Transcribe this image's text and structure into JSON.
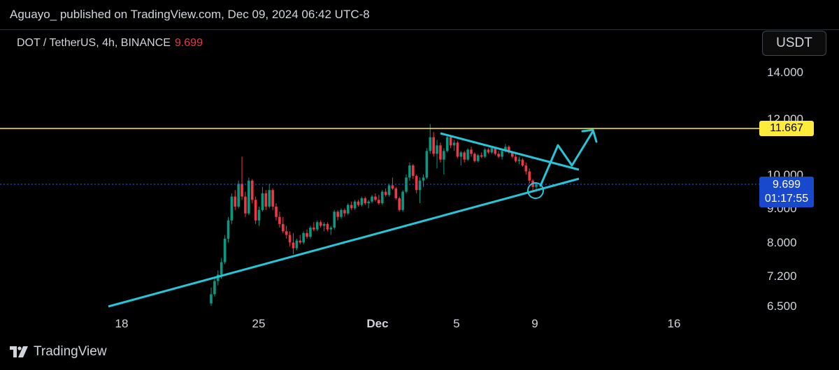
{
  "header": {
    "publish_line": "Aguayo_ published on TradingView.com, Dec 09, 2024 06:42 UTC-8"
  },
  "symbol": {
    "pair": "DOT / TetherUS, 4h, BINANCE",
    "last_price": "9.699"
  },
  "currency_button": {
    "label": "USDT"
  },
  "footer": {
    "brand": "TradingView"
  },
  "colors": {
    "up": "#089981",
    "down": "#f23645",
    "trendline": "#26c6da",
    "level": "#ffeb3b",
    "last_price_tag": "#1848cc",
    "background": "#000000"
  },
  "chart_data": {
    "type": "candlestick",
    "interval": "4h",
    "y_scale": "log",
    "ylim": [
      6.5,
      14.0
    ],
    "y_ticks": [
      "14.000",
      "12.000",
      "10.000",
      "9.000",
      "8.000",
      "7.200",
      "6.500"
    ],
    "x_ticks": [
      "18",
      "25",
      "Dec",
      "5",
      "9",
      "16"
    ],
    "price_labels": {
      "level": "11.667",
      "last": "9.699",
      "countdown": "01:17:55"
    },
    "horizontal_level": 11.667,
    "last_price": 9.699,
    "ohlc_4h": [
      [
        6.55,
        6.9,
        6.5,
        6.75
      ],
      [
        6.75,
        7.1,
        6.7,
        7.05
      ],
      [
        7.05,
        7.3,
        6.95,
        7.2
      ],
      [
        7.2,
        7.6,
        7.1,
        7.5
      ],
      [
        7.5,
        8.2,
        7.45,
        8.1
      ],
      [
        8.1,
        8.7,
        8.0,
        8.6
      ],
      [
        8.6,
        9.4,
        8.5,
        9.3
      ],
      [
        9.3,
        9.5,
        8.9,
        9.0
      ],
      [
        9.0,
        9.8,
        8.95,
        9.7
      ],
      [
        9.7,
        10.6,
        9.2,
        9.3
      ],
      [
        9.3,
        9.45,
        8.7,
        8.8
      ],
      [
        8.8,
        9.9,
        8.75,
        9.8
      ],
      [
        9.8,
        9.85,
        9.1,
        9.2
      ],
      [
        9.2,
        9.3,
        8.5,
        8.6
      ],
      [
        8.6,
        9.0,
        8.45,
        8.9
      ],
      [
        8.9,
        9.6,
        8.85,
        9.4
      ],
      [
        9.4,
        9.5,
        8.9,
        9.0
      ],
      [
        9.0,
        9.7,
        8.95,
        9.5
      ],
      [
        9.5,
        9.55,
        8.9,
        9.0
      ],
      [
        9.0,
        9.1,
        8.6,
        8.7
      ],
      [
        8.7,
        8.85,
        8.4,
        8.5
      ],
      [
        8.5,
        8.7,
        8.25,
        8.3
      ],
      [
        8.3,
        8.45,
        8.1,
        8.2
      ],
      [
        8.2,
        8.3,
        7.9,
        8.0
      ],
      [
        8.0,
        8.25,
        7.7,
        7.85
      ],
      [
        7.85,
        8.1,
        7.8,
        8.05
      ],
      [
        8.05,
        8.2,
        7.95,
        8.0
      ],
      [
        8.0,
        8.3,
        7.95,
        8.25
      ],
      [
        8.25,
        8.35,
        8.1,
        8.15
      ],
      [
        8.15,
        8.45,
        8.1,
        8.4
      ],
      [
        8.4,
        8.55,
        8.3,
        8.35
      ],
      [
        8.35,
        8.6,
        8.3,
        8.55
      ],
      [
        8.55,
        8.6,
        8.4,
        8.45
      ],
      [
        8.45,
        8.55,
        8.3,
        8.5
      ],
      [
        8.5,
        8.55,
        8.3,
        8.35
      ],
      [
        8.35,
        8.45,
        8.2,
        8.4
      ],
      [
        8.4,
        8.9,
        8.35,
        8.85
      ],
      [
        8.85,
        8.9,
        8.6,
        8.7
      ],
      [
        8.7,
        8.95,
        8.65,
        8.9
      ],
      [
        8.9,
        8.95,
        8.7,
        8.8
      ],
      [
        8.8,
        9.1,
        8.75,
        9.05
      ],
      [
        9.05,
        9.15,
        8.9,
        8.95
      ],
      [
        8.95,
        9.2,
        8.9,
        9.15
      ],
      [
        9.15,
        9.2,
        9.0,
        9.05
      ],
      [
        9.05,
        9.3,
        9.0,
        9.25
      ],
      [
        9.25,
        9.3,
        9.05,
        9.1
      ],
      [
        9.1,
        9.2,
        8.95,
        9.15
      ],
      [
        9.15,
        9.35,
        9.1,
        9.3
      ],
      [
        9.3,
        9.4,
        9.15,
        9.2
      ],
      [
        9.2,
        9.35,
        9.05,
        9.1
      ],
      [
        9.1,
        9.5,
        9.05,
        9.45
      ],
      [
        9.45,
        9.55,
        9.3,
        9.35
      ],
      [
        9.35,
        9.7,
        9.3,
        9.65
      ],
      [
        9.65,
        9.9,
        9.5,
        9.55
      ],
      [
        9.55,
        9.6,
        9.2,
        9.25
      ],
      [
        9.25,
        9.3,
        8.85,
        8.9
      ],
      [
        8.9,
        9.5,
        8.85,
        9.45
      ],
      [
        9.45,
        10.0,
        9.4,
        9.9
      ],
      [
        9.9,
        10.4,
        9.8,
        10.3
      ],
      [
        10.3,
        10.35,
        9.85,
        9.95
      ],
      [
        9.95,
        10.0,
        9.4,
        9.5
      ],
      [
        9.5,
        9.9,
        9.1,
        9.8
      ],
      [
        9.8,
        10.0,
        9.6,
        9.9
      ],
      [
        9.9,
        10.9,
        9.85,
        10.8
      ],
      [
        10.8,
        11.8,
        10.7,
        11.3
      ],
      [
        11.3,
        11.5,
        10.6,
        10.7
      ],
      [
        10.7,
        11.2,
        10.2,
        11.0
      ],
      [
        11.0,
        11.1,
        10.4,
        10.5
      ],
      [
        10.5,
        10.9,
        10.0,
        10.8
      ],
      [
        10.8,
        11.4,
        10.75,
        11.3
      ],
      [
        11.3,
        11.35,
        10.9,
        11.0
      ],
      [
        11.0,
        11.2,
        10.8,
        11.1
      ],
      [
        11.1,
        11.15,
        10.55,
        10.6
      ],
      [
        10.6,
        10.8,
        10.3,
        10.75
      ],
      [
        10.75,
        10.8,
        10.4,
        10.5
      ],
      [
        10.5,
        10.9,
        10.45,
        10.85
      ],
      [
        10.85,
        10.95,
        10.6,
        10.7
      ],
      [
        10.7,
        10.75,
        10.4,
        10.45
      ],
      [
        10.45,
        10.7,
        10.4,
        10.65
      ],
      [
        10.65,
        10.75,
        10.55,
        10.6
      ],
      [
        10.6,
        10.9,
        10.55,
        10.85
      ],
      [
        10.85,
        10.9,
        10.7,
        10.75
      ],
      [
        10.75,
        10.95,
        10.7,
        10.9
      ],
      [
        10.9,
        10.95,
        10.65,
        10.7
      ],
      [
        10.7,
        10.8,
        10.55,
        10.6
      ],
      [
        10.6,
        10.85,
        10.5,
        10.8
      ],
      [
        10.8,
        11.05,
        10.75,
        10.95
      ],
      [
        10.95,
        11.0,
        10.7,
        10.75
      ],
      [
        10.75,
        10.8,
        10.55,
        10.6
      ],
      [
        10.6,
        10.75,
        10.4,
        10.45
      ],
      [
        10.45,
        10.6,
        10.35,
        10.5
      ],
      [
        10.5,
        10.55,
        10.25,
        10.3
      ],
      [
        10.3,
        10.4,
        10.0,
        10.1
      ],
      [
        10.1,
        10.2,
        9.7,
        9.8
      ],
      [
        9.8,
        9.85,
        9.5,
        9.6
      ],
      [
        9.6,
        9.75,
        9.45,
        9.699
      ]
    ]
  }
}
